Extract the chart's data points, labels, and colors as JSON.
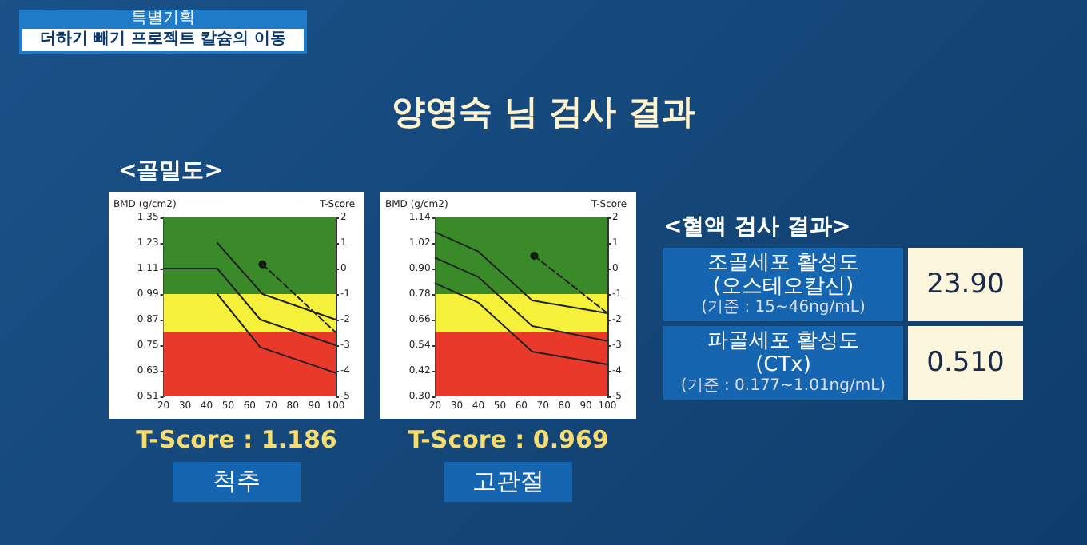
{
  "chart_data": [
    {
      "type": "other",
      "title": "양영숙 님 검사 결과",
      "annotations": [
        "특별기획",
        "더하기 빼기 프로젝트 칼슘의 이동",
        "<골밀도>"
      ]
    },
    {
      "type": "line",
      "title": "T-Score : 1.186",
      "subtitle": "척추",
      "ylabel": "BMD (g/cm2)",
      "y2label": "T-Score",
      "xlim": [
        20,
        100
      ],
      "xticks": [
        20,
        30,
        40,
        50,
        60,
        70,
        80,
        90,
        100
      ],
      "ylim": [
        0.51,
        1.35
      ],
      "yticks": [
        0.51,
        0.63,
        0.75,
        0.87,
        0.99,
        1.11,
        1.23,
        1.35
      ],
      "y2lim": [
        -5,
        2
      ],
      "y2ticks": [
        -5,
        -4,
        -3,
        -2,
        -1,
        0,
        1,
        2
      ],
      "grid": false,
      "marker": "none",
      "bands": [
        {
          "axis": "y",
          "from": 0.99,
          "to": 1.35,
          "color": "#3a8a2a"
        },
        {
          "axis": "y",
          "from": 0.81,
          "to": 0.99,
          "color": "#f5f03a"
        },
        {
          "axis": "y",
          "from": 0.51,
          "to": 0.81,
          "color": "#e8392a"
        }
      ],
      "series": [
        {
          "color": "#222222",
          "x": [
            45,
            66,
            100
          ],
          "values": [
            1.23,
            0.99,
            0.87
          ]
        },
        {
          "color": "#222222",
          "x": [
            20,
            45,
            65,
            100
          ],
          "values": [
            1.11,
            1.11,
            0.87,
            0.75
          ]
        },
        {
          "color": "#222222",
          "x": [
            45,
            65,
            100
          ],
          "values": [
            0.99,
            0.74,
            0.62
          ]
        },
        {
          "type": "scatter",
          "marker": "circle",
          "color": "#000000",
          "x": [
            66
          ],
          "values": [
            1.13
          ]
        },
        {
          "color": "#222222",
          "line_style": "dashed",
          "x": [
            66,
            100
          ],
          "values": [
            1.13,
            0.81
          ]
        }
      ]
    },
    {
      "type": "line",
      "title": "T-Score : 0.969",
      "subtitle": "고관절",
      "ylabel": "BMD (g/cm2)",
      "y2label": "T-Score",
      "xlim": [
        20,
        100
      ],
      "xticks": [
        20,
        30,
        40,
        50,
        60,
        70,
        80,
        90,
        100
      ],
      "ylim": [
        0.3,
        1.14
      ],
      "yticks": [
        {
          "value": 0.3,
          "label": "0.30"
        },
        0.42,
        0.54,
        0.66,
        0.78,
        {
          "value": 0.9,
          "label": "0.90"
        },
        1.02,
        1.14
      ],
      "y2lim": [
        -5,
        2
      ],
      "y2ticks": [
        -5,
        -4,
        -3,
        -2,
        -1,
        0,
        1,
        2
      ],
      "grid": false,
      "marker": "none",
      "bands": [
        {
          "axis": "y",
          "from": 0.78,
          "to": 1.14,
          "color": "#3a8a2a"
        },
        {
          "axis": "y",
          "from": 0.6,
          "to": 0.78,
          "color": "#f5f03a"
        },
        {
          "axis": "y",
          "from": 0.3,
          "to": 0.6,
          "color": "#e8392a"
        }
      ],
      "series": [
        {
          "color": "#222222",
          "x": [
            20,
            40,
            65,
            100
          ],
          "values": [
            1.07,
            0.98,
            0.75,
            0.69
          ]
        },
        {
          "color": "#222222",
          "x": [
            20,
            40,
            65,
            100
          ],
          "values": [
            0.95,
            0.86,
            0.63,
            0.56
          ]
        },
        {
          "color": "#222222",
          "x": [
            20,
            40,
            65,
            100
          ],
          "values": [
            0.83,
            0.74,
            0.51,
            0.45
          ]
        },
        {
          "type": "scatter",
          "marker": "circle",
          "color": "#000000",
          "x": [
            66
          ],
          "values": [
            0.96
          ]
        },
        {
          "color": "#222222",
          "line_style": "dashed",
          "x": [
            66,
            100
          ],
          "values": [
            0.96,
            0.69
          ]
        }
      ]
    },
    {
      "type": "other",
      "title": "<혈액 검사 결과>",
      "categories": [
        "조골세포 활성도\n(오스테오칼신)",
        "파골세포 활성도\n(CTx)"
      ],
      "value_labels": [
        "23.90",
        "0.510"
      ],
      "annotations": [
        "(기준 : 15~46ng/mL)",
        "(기준 : 0.177~1.01ng/mL)"
      ]
    }
  ]
}
